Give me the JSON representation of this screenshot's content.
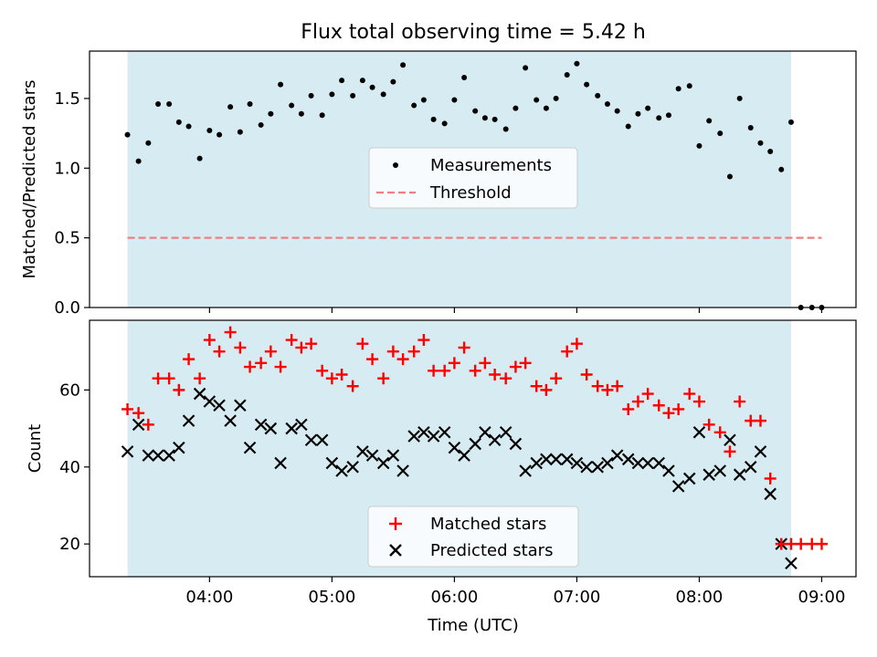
{
  "chart_data": {
    "title": "Flux total observing time = 5.42 h",
    "xlabel": "Time (UTC)",
    "x_range_hours": [
      3.02,
      9.28
    ],
    "x_ticks": [
      {
        "value": 4,
        "label": "04:00"
      },
      {
        "value": 5,
        "label": "05:00"
      },
      {
        "value": 6,
        "label": "06:00"
      },
      {
        "value": 7,
        "label": "07:00"
      },
      {
        "value": 8,
        "label": "08:00"
      },
      {
        "value": 9,
        "label": "09:00"
      }
    ],
    "shaded_span_hours": [
      3.33,
      8.75
    ],
    "colors": {
      "shade": "#add8e6",
      "measurement": "#000000",
      "threshold": "#f08080",
      "matched": "#ff0000",
      "predicted": "#000000"
    },
    "ratio_panel": {
      "type": "scatter",
      "ylabel": "Matched/Predicted stars",
      "ylim": [
        0,
        1.84
      ],
      "y_ticks": [
        {
          "value": 0,
          "label": "0.0"
        },
        {
          "value": 0.5,
          "label": "0.5"
        },
        {
          "value": 1,
          "label": "1.0"
        },
        {
          "value": 1.5,
          "label": "1.5"
        }
      ],
      "threshold": {
        "value": 0.5,
        "x_start": 3.33,
        "x_end": 9.0
      },
      "legend": [
        "Measurements",
        "Threshold"
      ],
      "series": [
        {
          "name": "Measurements",
          "x": [
            3.33,
            3.42,
            3.5,
            3.58,
            3.67,
            3.75,
            3.83,
            3.92,
            4.0,
            4.08,
            4.17,
            4.25,
            4.33,
            4.42,
            4.5,
            4.58,
            4.67,
            4.75,
            4.83,
            4.92,
            5.0,
            5.08,
            5.17,
            5.25,
            5.33,
            5.42,
            5.5,
            5.58,
            5.67,
            5.75,
            5.83,
            5.92,
            6.0,
            6.08,
            6.17,
            6.25,
            6.33,
            6.42,
            6.5,
            6.58,
            6.67,
            6.75,
            6.83,
            6.92,
            7.0,
            7.08,
            7.17,
            7.25,
            7.33,
            7.42,
            7.5,
            7.58,
            7.67,
            7.75,
            7.83,
            7.92,
            8.0,
            8.08,
            8.17,
            8.25,
            8.33,
            8.42,
            8.5,
            8.58,
            8.67,
            8.75,
            8.83,
            8.92,
            9.0
          ],
          "y": [
            1.24,
            1.05,
            1.18,
            1.46,
            1.46,
            1.33,
            1.3,
            1.07,
            1.27,
            1.24,
            1.44,
            1.26,
            1.46,
            1.31,
            1.39,
            1.6,
            1.45,
            1.39,
            1.52,
            1.38,
            1.53,
            1.63,
            1.52,
            1.63,
            1.58,
            1.53,
            1.62,
            1.74,
            1.45,
            1.49,
            1.35,
            1.32,
            1.49,
            1.65,
            1.41,
            1.36,
            1.35,
            1.28,
            1.43,
            1.72,
            1.49,
            1.43,
            1.5,
            1.67,
            1.75,
            1.6,
            1.52,
            1.46,
            1.41,
            1.3,
            1.39,
            1.43,
            1.36,
            1.38,
            1.57,
            1.59,
            1.16,
            1.34,
            1.25,
            0.94,
            1.5,
            1.29,
            1.18,
            1.12,
            0.99,
            1.33,
            0.0,
            0.0,
            0.0
          ]
        }
      ]
    },
    "count_panel": {
      "type": "scatter",
      "ylabel": "Count",
      "ylim": [
        11.5,
        78.1
      ],
      "y_ticks": [
        {
          "value": 20,
          "label": "20"
        },
        {
          "value": 40,
          "label": "40"
        },
        {
          "value": 60,
          "label": "60"
        }
      ],
      "legend": [
        "Matched stars",
        "Predicted stars"
      ],
      "series": [
        {
          "name": "Matched stars",
          "marker": "+",
          "x": [
            3.33,
            3.42,
            3.5,
            3.58,
            3.67,
            3.75,
            3.83,
            3.92,
            4.0,
            4.08,
            4.17,
            4.25,
            4.33,
            4.42,
            4.5,
            4.58,
            4.67,
            4.75,
            4.83,
            4.92,
            5.0,
            5.08,
            5.17,
            5.25,
            5.33,
            5.42,
            5.5,
            5.58,
            5.67,
            5.75,
            5.83,
            5.92,
            6.0,
            6.08,
            6.17,
            6.25,
            6.33,
            6.42,
            6.5,
            6.58,
            6.67,
            6.75,
            6.83,
            6.92,
            7.0,
            7.08,
            7.17,
            7.25,
            7.33,
            7.42,
            7.5,
            7.58,
            7.67,
            7.75,
            7.83,
            7.92,
            8.0,
            8.08,
            8.17,
            8.25,
            8.33,
            8.42,
            8.5,
            8.58,
            8.67,
            8.75,
            8.83,
            8.92,
            9.0
          ],
          "y": [
            55,
            54,
            51,
            63,
            63,
            60,
            68,
            63,
            73,
            70,
            75,
            71,
            66,
            67,
            70,
            66,
            73,
            71,
            72,
            65,
            63,
            64,
            61,
            72,
            68,
            63,
            70,
            68,
            70,
            73,
            65,
            65,
            67,
            71,
            65,
            67,
            64,
            63,
            66,
            67,
            61,
            60,
            63,
            70,
            72,
            64,
            61,
            60,
            61,
            55,
            57,
            59,
            56,
            54,
            55,
            59,
            57,
            51,
            49,
            44,
            57,
            52,
            52,
            37,
            20,
            20,
            20,
            20,
            20
          ]
        },
        {
          "name": "Predicted stars",
          "marker": "x",
          "x": [
            3.33,
            3.42,
            3.5,
            3.58,
            3.67,
            3.75,
            3.83,
            3.92,
            4.0,
            4.08,
            4.17,
            4.25,
            4.33,
            4.42,
            4.5,
            4.58,
            4.67,
            4.75,
            4.83,
            4.92,
            5.0,
            5.08,
            5.17,
            5.25,
            5.33,
            5.42,
            5.5,
            5.58,
            5.67,
            5.75,
            5.83,
            5.92,
            6.0,
            6.08,
            6.17,
            6.25,
            6.33,
            6.42,
            6.5,
            6.58,
            6.67,
            6.75,
            6.83,
            6.92,
            7.0,
            7.08,
            7.17,
            7.25,
            7.33,
            7.42,
            7.5,
            7.58,
            7.67,
            7.75,
            7.83,
            7.92,
            8.0,
            8.08,
            8.17,
            8.25,
            8.33,
            8.42,
            8.5,
            8.58,
            8.67,
            8.75
          ],
          "y": [
            44,
            51,
            43,
            43,
            43,
            45,
            52,
            59,
            57,
            56,
            52,
            56,
            45,
            51,
            50,
            41,
            50,
            51,
            47,
            47,
            41,
            39,
            40,
            44,
            43,
            41,
            43,
            39,
            48,
            49,
            48,
            49,
            45,
            43,
            46,
            49,
            47,
            49,
            46,
            39,
            41,
            42,
            42,
            42,
            41,
            40,
            40,
            41,
            43,
            42,
            41,
            41,
            41,
            39,
            35,
            37,
            49,
            38,
            39,
            47,
            38,
            40,
            44,
            33,
            20,
            15
          ]
        }
      ]
    }
  }
}
